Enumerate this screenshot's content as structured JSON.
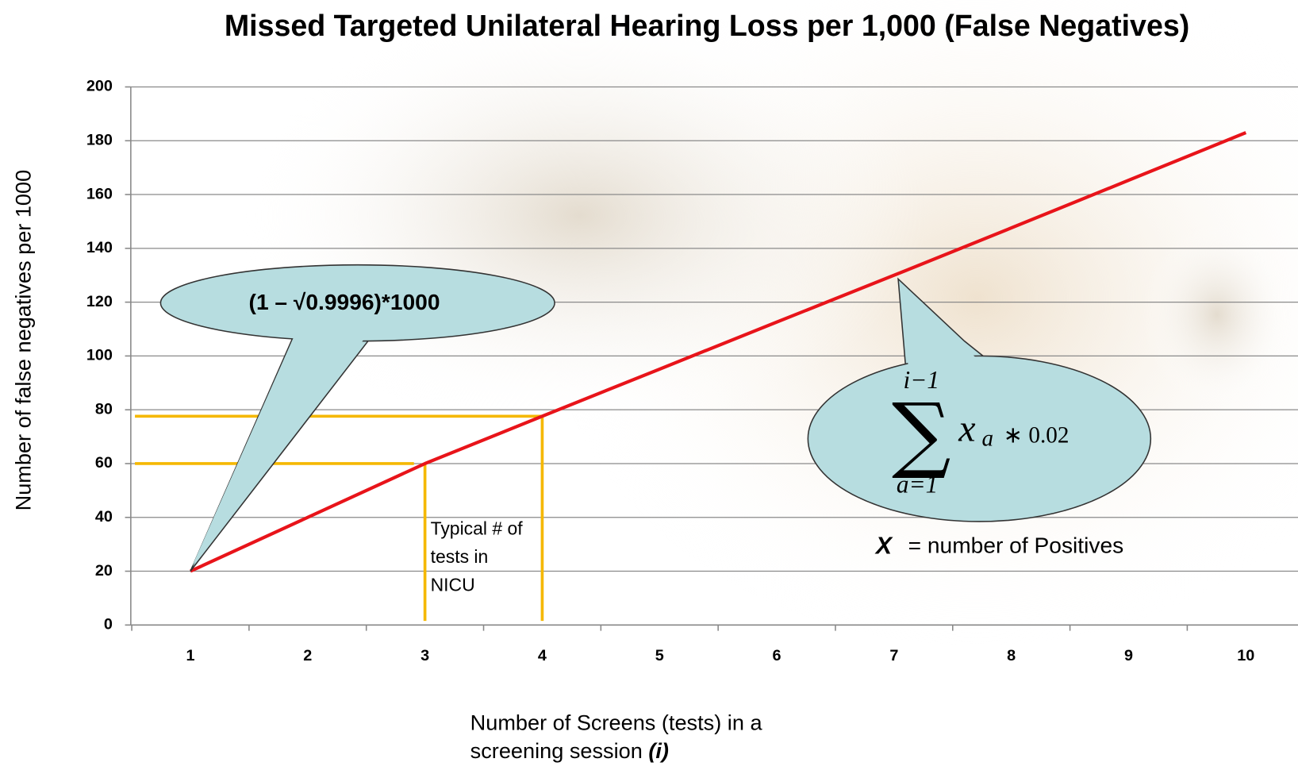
{
  "chart_data": {
    "type": "line",
    "title": "Missed Targeted Unilateral Hearing Loss per 1,000 (False Negatives)",
    "y_label": "Number of false negatives per 1000",
    "x_label": "Number of Screens (tests) in a screening session",
    "x_label_variable": "(i)",
    "categories": [
      "1",
      "2",
      "3",
      "4",
      "5",
      "6",
      "7",
      "8",
      "9",
      "10"
    ],
    "series": [
      {
        "color": "#e8141a",
        "values": [
          20,
          40,
          60,
          77.6,
          95.1,
          112.6,
          130,
          147.6,
          165.3,
          183
        ]
      }
    ],
    "reference_color": "#f5b800",
    "ylim": [
      0,
      200
    ],
    "yticks": [
      0,
      20,
      40,
      60,
      80,
      100,
      120,
      140,
      160,
      180,
      200
    ],
    "grid": true,
    "annotations": {
      "callout_formula": "(1 – √0.9996)*1000",
      "sum_symbol": "∑",
      "sum_upper": "i−1",
      "sum_lower": "a=1",
      "sum_term": "x",
      "sum_index": "a",
      "sum_factor": "∗ 0.02",
      "legend_variable": "X",
      "legend_text": "= number of  Positives",
      "nicu_note": "Typical # of tests in NICU"
    }
  }
}
